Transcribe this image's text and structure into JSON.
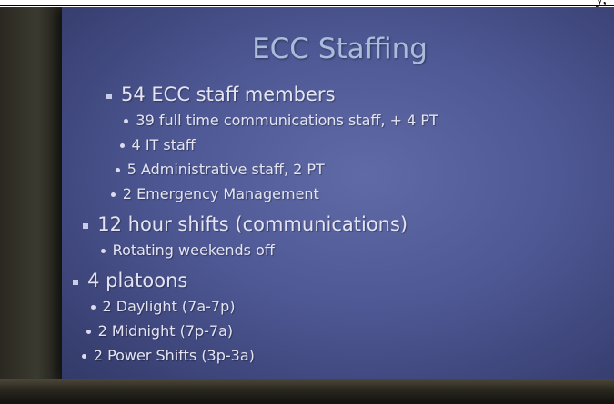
{
  "header_fragment": "y,",
  "slide": {
    "title": "ECC Staffing",
    "items": [
      {
        "text": "54 ECC staff members",
        "subitems": [
          "39 full time communications staff, + 4 PT",
          "4 IT staff",
          "5 Administrative staff, 2 PT",
          "2 Emergency Management"
        ]
      },
      {
        "text": "12 hour shifts (communications)",
        "subitems": [
          "Rotating weekends off"
        ]
      },
      {
        "text": "4 platoons",
        "subitems": [
          "2 Daylight (7a-7p)",
          "2 Midnight (7p-7a)",
          "2 Power Shifts (3p-3a)"
        ]
      }
    ]
  }
}
